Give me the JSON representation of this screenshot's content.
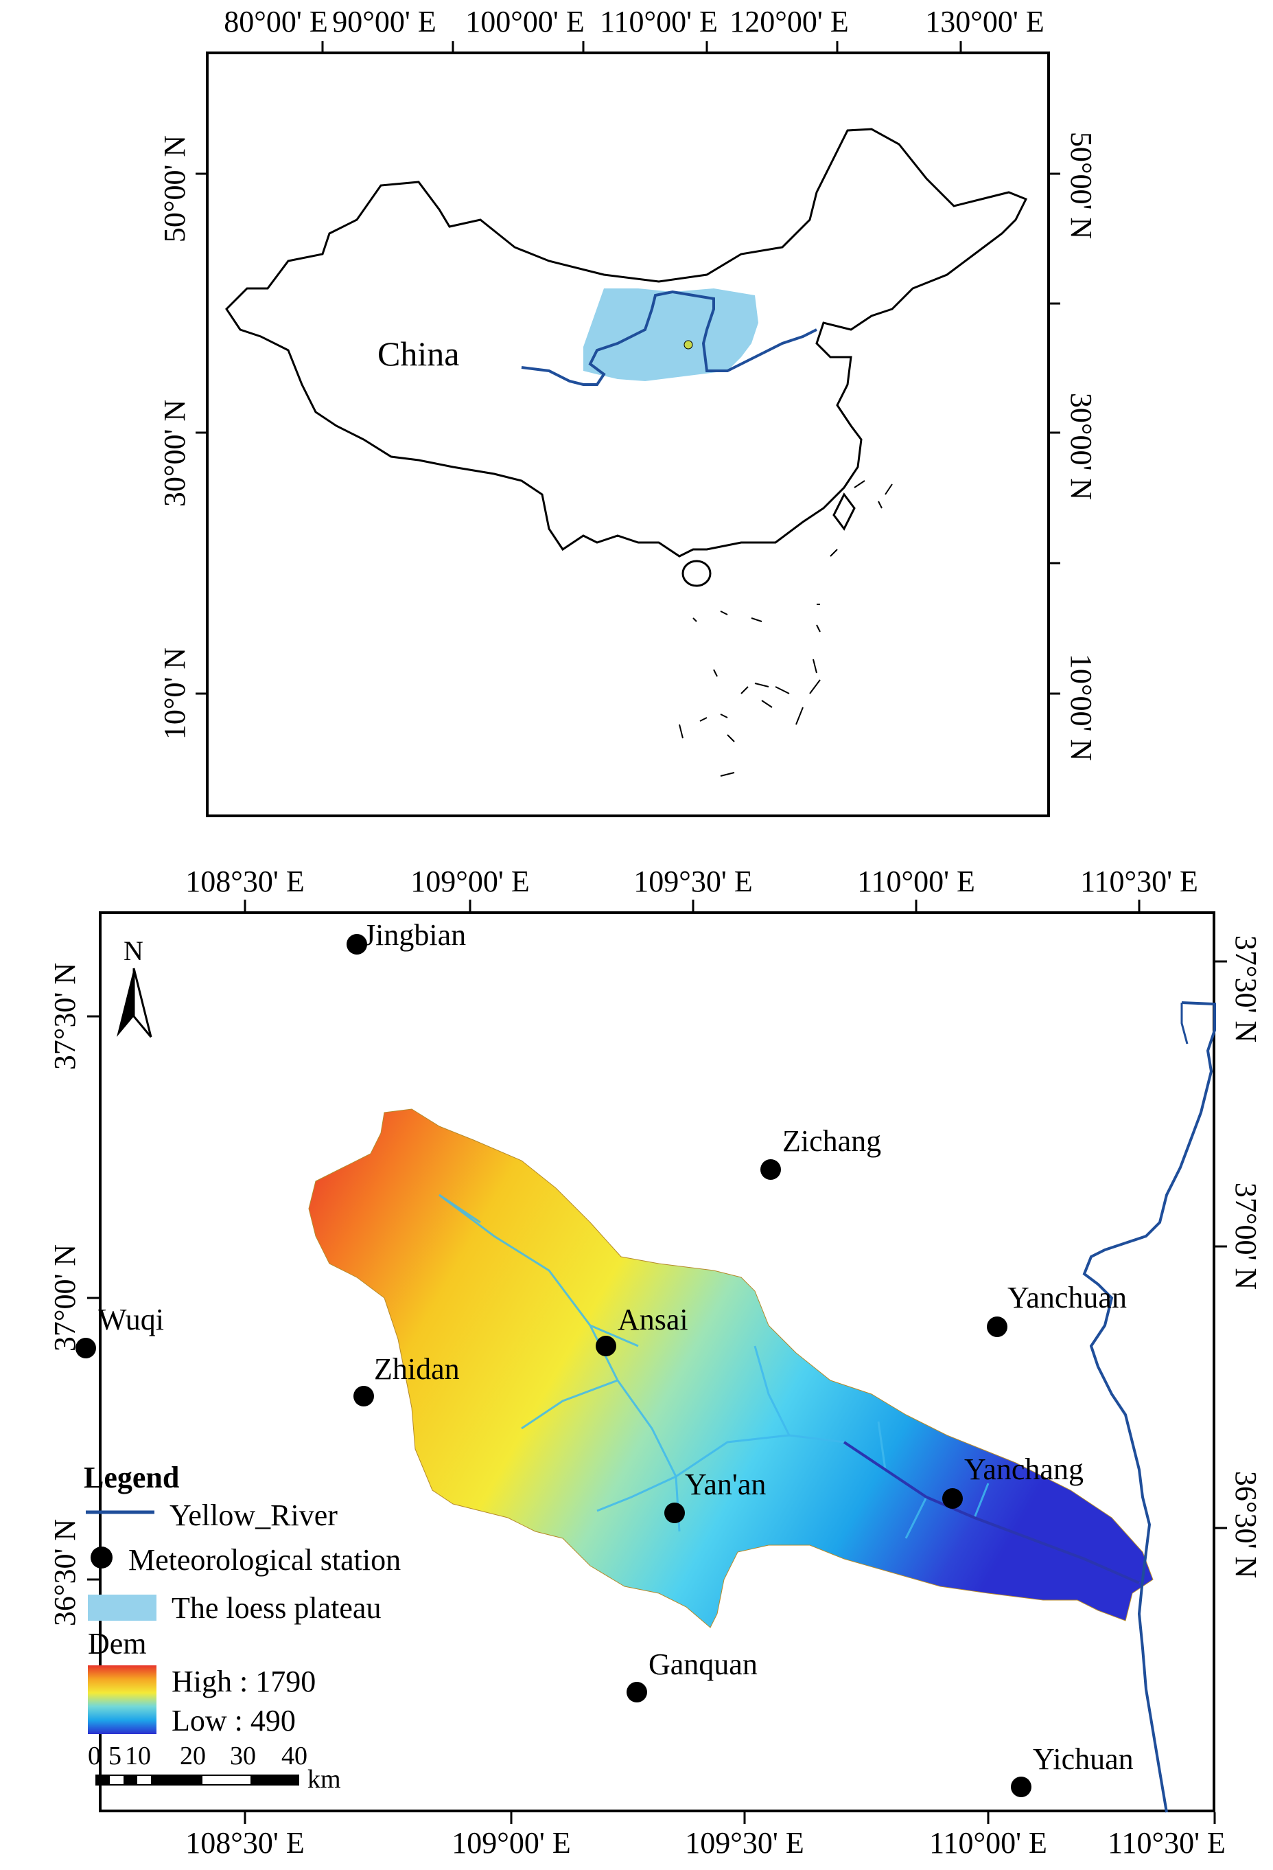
{
  "top_map": {
    "lon_labels_top": [
      "80°00' E",
      "90°00' E",
      "100°00' E",
      "110°00' E",
      "120°00' E",
      "130°00' E"
    ],
    "lat_labels_left": [
      "50°00' N",
      "30°00' N",
      "10°0' N"
    ],
    "lat_labels_right": [
      "50°00' N",
      "30°00' N",
      "10°00' N"
    ],
    "country_label": "China",
    "colors": {
      "loess_plateau": "#96d2ec",
      "yellow_river": "#1f4e9a",
      "outline": "#000000"
    }
  },
  "bottom_map": {
    "lon_labels_top": [
      "108°30' E",
      "109°00' E",
      "109°30' E",
      "110°00' E",
      "110°30' E"
    ],
    "lon_labels_bottom": [
      "108°30' E",
      "109°00' E",
      "109°30' E",
      "110°00' E",
      "110°30' E"
    ],
    "lat_labels_left": [
      "37°30' N",
      "37°00' N",
      "36°30' N"
    ],
    "lat_labels_right": [
      "37°30' N",
      "37°00' N",
      "36°30' N"
    ],
    "north_arrow": "N",
    "stations": [
      {
        "name": "Jingbian"
      },
      {
        "name": "Zichang"
      },
      {
        "name": "Yanchuan"
      },
      {
        "name": "Wuqi"
      },
      {
        "name": "Ansai"
      },
      {
        "name": "Zhidan"
      },
      {
        "name": "Yan'an"
      },
      {
        "name": "Yanchang"
      },
      {
        "name": "Ganquan"
      },
      {
        "name": "Yichuan"
      }
    ],
    "legend": {
      "title": "Legend",
      "river": "Yellow_River",
      "station": "Meteorological station",
      "plateau": "The loess plateau",
      "dem_title": "Dem",
      "dem_high": "High : 1790",
      "dem_low": "Low : 490"
    },
    "scale_bar": {
      "ticks": [
        "0",
        "5",
        "10",
        "20",
        "30",
        "40"
      ],
      "unit": "km"
    },
    "colors": {
      "river": "#1f4e9a",
      "station": "#000000"
    }
  }
}
